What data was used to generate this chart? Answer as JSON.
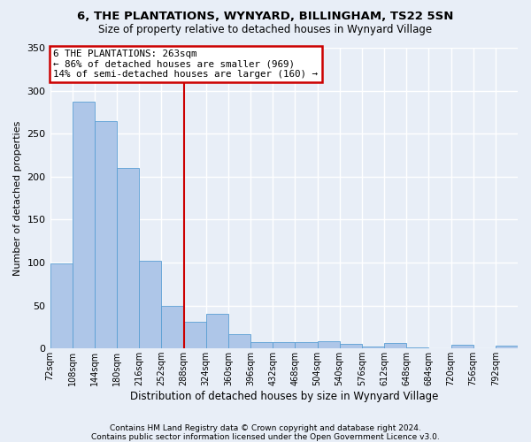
{
  "title1": "6, THE PLANTATIONS, WYNYARD, BILLINGHAM, TS22 5SN",
  "title2": "Size of property relative to detached houses in Wynyard Village",
  "xlabel": "Distribution of detached houses by size in Wynyard Village",
  "ylabel": "Number of detached properties",
  "bar_labels": [
    "72sqm",
    "108sqm",
    "144sqm",
    "180sqm",
    "216sqm",
    "252sqm",
    "288sqm",
    "324sqm",
    "360sqm",
    "396sqm",
    "432sqm",
    "468sqm",
    "504sqm",
    "540sqm",
    "576sqm",
    "612sqm",
    "648sqm",
    "684sqm",
    "720sqm",
    "756sqm",
    "792sqm"
  ],
  "bar_values": [
    99,
    287,
    265,
    210,
    102,
    50,
    31,
    40,
    17,
    7,
    7,
    7,
    8,
    5,
    2,
    6,
    1,
    0,
    4,
    0,
    3
  ],
  "bar_color": "#aec6e8",
  "bar_edge_color": "#5a9fd4",
  "bg_color": "#e8eef7",
  "grid_color": "#ffffff",
  "vline_x": 6.0,
  "vline_color": "#cc0000",
  "annotation_text": "6 THE PLANTATIONS: 263sqm\n← 86% of detached houses are smaller (969)\n14% of semi-detached houses are larger (160) →",
  "annotation_box_facecolor": "#ffffff",
  "annotation_box_edge": "#cc0000",
  "ylim": [
    0,
    350
  ],
  "yticks": [
    0,
    50,
    100,
    150,
    200,
    250,
    300,
    350
  ],
  "footer1": "Contains HM Land Registry data © Crown copyright and database right 2024.",
  "footer2": "Contains public sector information licensed under the Open Government Licence v3.0."
}
